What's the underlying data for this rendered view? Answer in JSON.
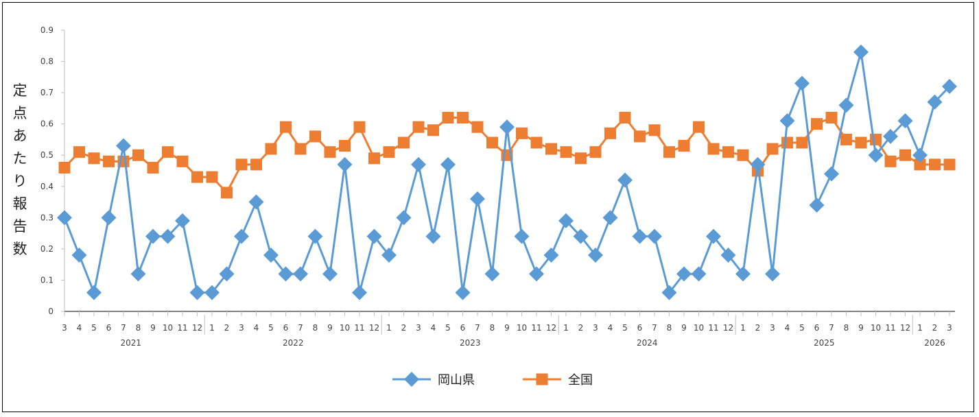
{
  "chart_data": {
    "type": "line",
    "title": "",
    "ylabel": "定点あたり報告数",
    "xlabel": "",
    "ylim": [
      0,
      0.9
    ],
    "yticks": [
      "0",
      "0.1",
      "0.2",
      "0.3",
      "0.4",
      "0.5",
      "0.6",
      "0.7",
      "0.8",
      "0.9"
    ],
    "categories": [
      "3",
      "4",
      "5",
      "6",
      "7",
      "8",
      "9",
      "10",
      "11",
      "12",
      "1",
      "2",
      "3",
      "4",
      "5",
      "6",
      "7",
      "8",
      "9",
      "10",
      "11",
      "12",
      "1",
      "2",
      "3",
      "4",
      "5",
      "6",
      "7",
      "8",
      "9",
      "10",
      "11",
      "12",
      "1",
      "2",
      "3",
      "4",
      "5",
      "6",
      "7",
      "8",
      "9",
      "10",
      "11",
      "12",
      "1",
      "2",
      "3",
      "4",
      "5",
      "6",
      "7",
      "8",
      "9",
      "10",
      "11",
      "12",
      "1",
      "2",
      "3"
    ],
    "years": [
      {
        "label": "2021",
        "start": 0,
        "end": 9
      },
      {
        "label": "2022",
        "start": 10,
        "end": 21
      },
      {
        "label": "2023",
        "start": 22,
        "end": 33
      },
      {
        "label": "2024",
        "start": 34,
        "end": 45
      },
      {
        "label": "2025",
        "start": 46,
        "end": 57
      },
      {
        "label": "2026",
        "start": 58,
        "end": 60
      }
    ],
    "legend_position": "bottom",
    "grid": false,
    "series": [
      {
        "name": "岡山県",
        "color": "#5B9BD5",
        "marker": "diamond",
        "values": [
          0.3,
          0.18,
          0.06,
          0.3,
          0.53,
          0.12,
          0.24,
          0.24,
          0.29,
          0.06,
          0.06,
          0.12,
          0.24,
          0.35,
          0.18,
          0.12,
          0.12,
          0.24,
          0.12,
          0.47,
          0.06,
          0.24,
          0.18,
          0.3,
          0.47,
          0.24,
          0.47,
          0.06,
          0.36,
          0.12,
          0.59,
          0.24,
          0.12,
          0.18,
          0.29,
          0.24,
          0.18,
          0.3,
          0.42,
          0.24,
          0.24,
          0.06,
          0.12,
          0.12,
          0.24,
          0.18,
          0.12,
          0.47,
          0.12,
          0.61,
          0.73,
          0.34,
          0.44,
          0.66,
          0.83,
          0.5,
          0.56,
          0.61,
          0.5,
          0.67,
          0.72
        ]
      },
      {
        "name": "全国",
        "color": "#ED7D31",
        "marker": "square",
        "values": [
          0.46,
          0.51,
          0.49,
          0.48,
          0.48,
          0.5,
          0.46,
          0.51,
          0.48,
          0.43,
          0.43,
          0.38,
          0.47,
          0.47,
          0.52,
          0.59,
          0.52,
          0.56,
          0.51,
          0.53,
          0.59,
          0.49,
          0.51,
          0.54,
          0.59,
          0.58,
          0.62,
          0.62,
          0.59,
          0.54,
          0.5,
          0.57,
          0.54,
          0.52,
          0.51,
          0.49,
          0.51,
          0.57,
          0.62,
          0.56,
          0.58,
          0.51,
          0.53,
          0.59,
          0.52,
          0.51,
          0.5,
          0.45,
          0.52,
          0.54,
          0.54,
          0.6,
          0.62,
          0.55,
          0.54,
          0.55,
          0.48,
          0.5,
          0.47,
          0.47,
          0.47
        ]
      }
    ]
  }
}
